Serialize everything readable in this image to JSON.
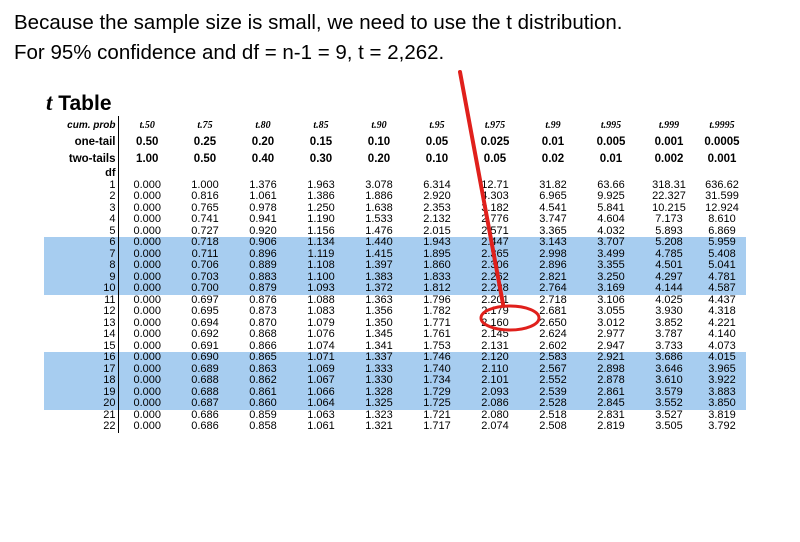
{
  "intro": {
    "line1": "Because the sample size is small, we need to use the t distribution.",
    "line2": "For 95% confidence and df = n-1 = 9, t = 2,262."
  },
  "table": {
    "title_t": "t",
    "title_rest": " Table",
    "symbols": [
      "t.50",
      "t.75",
      "t.80",
      "t.85",
      "t.90",
      "t.95",
      "t.975",
      "t.99",
      "t.995",
      "t.999",
      "t.9995"
    ],
    "header_labels": {
      "cum": "cum. prob",
      "one": "one-tail",
      "two": "two-tails",
      "df": "df"
    },
    "cum_prob": [
      "t.50",
      "t.75",
      "t.80",
      "t.85",
      "t.90",
      "t.95",
      "t.975",
      "t.99",
      "t.995",
      "t.999",
      "t.9995"
    ],
    "one_tail": [
      "0.50",
      "0.25",
      "0.20",
      "0.15",
      "0.10",
      "0.05",
      "0.025",
      "0.01",
      "0.005",
      "0.001",
      "0.0005"
    ],
    "two_tails": [
      "1.00",
      "0.50",
      "0.40",
      "0.30",
      "0.20",
      "0.10",
      "0.05",
      "0.02",
      "0.01",
      "0.002",
      "0.001"
    ],
    "rows": [
      {
        "df": "1",
        "v": [
          "0.000",
          "1.000",
          "1.376",
          "1.963",
          "3.078",
          "6.314",
          "12.71",
          "31.82",
          "63.66",
          "318.31",
          "636.62"
        ]
      },
      {
        "df": "2",
        "v": [
          "0.000",
          "0.816",
          "1.061",
          "1.386",
          "1.886",
          "2.920",
          "4.303",
          "6.965",
          "9.925",
          "22.327",
          "31.599"
        ]
      },
      {
        "df": "3",
        "v": [
          "0.000",
          "0.765",
          "0.978",
          "1.250",
          "1.638",
          "2.353",
          "3.182",
          "4.541",
          "5.841",
          "10.215",
          "12.924"
        ]
      },
      {
        "df": "4",
        "v": [
          "0.000",
          "0.741",
          "0.941",
          "1.190",
          "1.533",
          "2.132",
          "2.776",
          "3.747",
          "4.604",
          "7.173",
          "8.610"
        ]
      },
      {
        "df": "5",
        "v": [
          "0.000",
          "0.727",
          "0.920",
          "1.156",
          "1.476",
          "2.015",
          "2.571",
          "3.365",
          "4.032",
          "5.893",
          "6.869"
        ]
      },
      {
        "df": "6",
        "v": [
          "0.000",
          "0.718",
          "0.906",
          "1.134",
          "1.440",
          "1.943",
          "2.447",
          "3.143",
          "3.707",
          "5.208",
          "5.959"
        ]
      },
      {
        "df": "7",
        "v": [
          "0.000",
          "0.711",
          "0.896",
          "1.119",
          "1.415",
          "1.895",
          "2.365",
          "2.998",
          "3.499",
          "4.785",
          "5.408"
        ]
      },
      {
        "df": "8",
        "v": [
          "0.000",
          "0.706",
          "0.889",
          "1.108",
          "1.397",
          "1.860",
          "2.306",
          "2.896",
          "3.355",
          "4.501",
          "5.041"
        ]
      },
      {
        "df": "9",
        "v": [
          "0.000",
          "0.703",
          "0.883",
          "1.100",
          "1.383",
          "1.833",
          "2.262",
          "2.821",
          "3.250",
          "4.297",
          "4.781"
        ]
      },
      {
        "df": "10",
        "v": [
          "0.000",
          "0.700",
          "0.879",
          "1.093",
          "1.372",
          "1.812",
          "2.228",
          "2.764",
          "3.169",
          "4.144",
          "4.587"
        ]
      },
      {
        "df": "11",
        "v": [
          "0.000",
          "0.697",
          "0.876",
          "1.088",
          "1.363",
          "1.796",
          "2.201",
          "2.718",
          "3.106",
          "4.025",
          "4.437"
        ]
      },
      {
        "df": "12",
        "v": [
          "0.000",
          "0.695",
          "0.873",
          "1.083",
          "1.356",
          "1.782",
          "2.179",
          "2.681",
          "3.055",
          "3.930",
          "4.318"
        ]
      },
      {
        "df": "13",
        "v": [
          "0.000",
          "0.694",
          "0.870",
          "1.079",
          "1.350",
          "1.771",
          "2.160",
          "2.650",
          "3.012",
          "3.852",
          "4.221"
        ]
      },
      {
        "df": "14",
        "v": [
          "0.000",
          "0.692",
          "0.868",
          "1.076",
          "1.345",
          "1.761",
          "2.145",
          "2.624",
          "2.977",
          "3.787",
          "4.140"
        ]
      },
      {
        "df": "15",
        "v": [
          "0.000",
          "0.691",
          "0.866",
          "1.074",
          "1.341",
          "1.753",
          "2.131",
          "2.602",
          "2.947",
          "3.733",
          "4.073"
        ]
      },
      {
        "df": "16",
        "v": [
          "0.000",
          "0.690",
          "0.865",
          "1.071",
          "1.337",
          "1.746",
          "2.120",
          "2.583",
          "2.921",
          "3.686",
          "4.015"
        ]
      },
      {
        "df": "17",
        "v": [
          "0.000",
          "0.689",
          "0.863",
          "1.069",
          "1.333",
          "1.740",
          "2.110",
          "2.567",
          "2.898",
          "3.646",
          "3.965"
        ]
      },
      {
        "df": "18",
        "v": [
          "0.000",
          "0.688",
          "0.862",
          "1.067",
          "1.330",
          "1.734",
          "2.101",
          "2.552",
          "2.878",
          "3.610",
          "3.922"
        ]
      },
      {
        "df": "19",
        "v": [
          "0.000",
          "0.688",
          "0.861",
          "1.066",
          "1.328",
          "1.729",
          "2.093",
          "2.539",
          "2.861",
          "3.579",
          "3.883"
        ]
      },
      {
        "df": "20",
        "v": [
          "0.000",
          "0.687",
          "0.860",
          "1.064",
          "1.325",
          "1.725",
          "2.086",
          "2.528",
          "2.845",
          "3.552",
          "3.850"
        ]
      },
      {
        "df": "21",
        "v": [
          "0.000",
          "0.686",
          "0.859",
          "1.063",
          "1.323",
          "1.721",
          "2.080",
          "2.518",
          "2.831",
          "3.527",
          "3.819"
        ]
      },
      {
        "df": "22",
        "v": [
          "0.000",
          "0.686",
          "0.858",
          "1.061",
          "1.321",
          "1.717",
          "2.074",
          "2.508",
          "2.819",
          "3.505",
          "3.792"
        ]
      }
    ],
    "highlight_dfs": [
      "6",
      "7",
      "8",
      "9",
      "10",
      "16",
      "17",
      "18",
      "19",
      "20"
    ],
    "highlight_color": "#a7cdf0",
    "annotation_color": "#e0201c",
    "circled_value": "2.262"
  }
}
